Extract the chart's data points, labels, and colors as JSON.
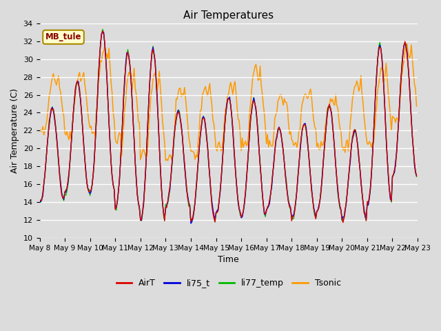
{
  "title": "Air Temperatures",
  "xlabel": "Time",
  "ylabel": "Air Temperature (C)",
  "ylim": [
    10,
    34
  ],
  "background_color": "#dcdcdc",
  "plot_bg_color": "#dcdcdc",
  "grid_color": "#ffffff",
  "annotation_text": "MB_tule",
  "annotation_bg": "#ffffcc",
  "annotation_border": "#aa8800",
  "annotation_text_color": "#880000",
  "colors": {
    "AirT": "#dd0000",
    "li75_t": "#0000dd",
    "li77_temp": "#00bb00",
    "Tsonic": "#ff9900"
  },
  "tick_labels": [
    "May 8",
    "May 9",
    "May 10",
    "May 11",
    "May 12",
    "May 13",
    "May 14",
    "May 15",
    "May 16",
    "May 17",
    "May 18",
    "May 19",
    "May 20",
    "May 21",
    "May 22",
    "May 23"
  ],
  "yticks": [
    10,
    12,
    14,
    16,
    18,
    20,
    22,
    24,
    26,
    28,
    30,
    32,
    34
  ],
  "day_peaks": [
    24.5,
    27.5,
    33.2,
    30.8,
    31.0,
    24.2,
    23.5,
    25.8,
    25.5,
    22.3,
    22.8,
    24.8,
    22.0,
    31.5,
    31.8
  ],
  "day_troughs": [
    14.0,
    15.0,
    15.2,
    13.2,
    12.0,
    13.5,
    11.8,
    12.8,
    12.5,
    13.2,
    12.2,
    13.0,
    12.0,
    13.8,
    16.8
  ],
  "tsonic_peaks": [
    28.2,
    28.5,
    31.0,
    28.5,
    28.5,
    26.8,
    27.2,
    27.2,
    29.0,
    26.2,
    26.5,
    25.8,
    27.5,
    29.0,
    31.5
  ],
  "tsonic_troughs": [
    21.8,
    21.0,
    24.5,
    18.8,
    19.0,
    18.5,
    19.2,
    20.2,
    20.5,
    20.5,
    20.8,
    20.2,
    19.8,
    20.5,
    23.2
  ],
  "tsonic_nights": [
    22.2,
    21.5,
    21.5,
    21.8,
    19.5,
    19.0,
    19.5,
    20.2,
    20.5,
    20.8,
    20.5,
    20.5,
    20.2,
    20.5,
    23.5
  ]
}
